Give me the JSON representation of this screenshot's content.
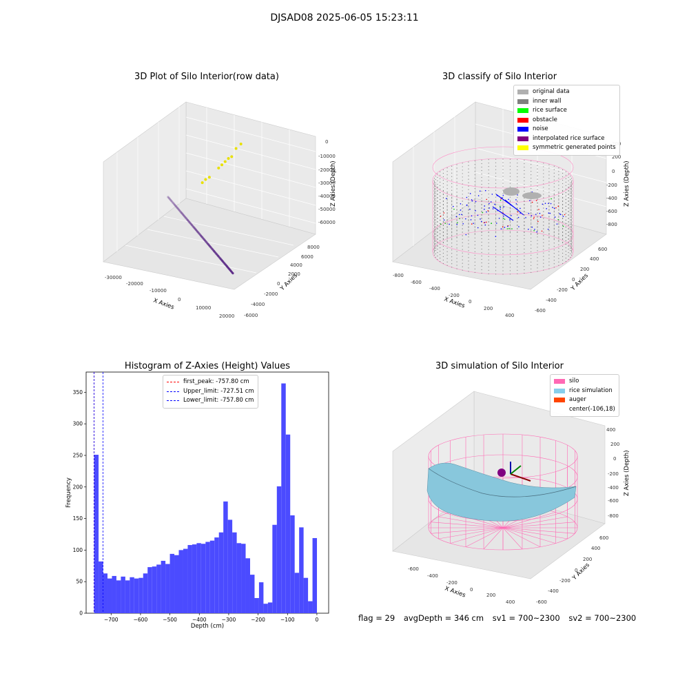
{
  "figure_title": "DJSAD08 2025-06-05 15:23:11",
  "footer": {
    "flag": "flag = 29",
    "avg_depth": "avgDepth = 346 cm",
    "sv1": "sv1 = 700~2300",
    "sv2": "sv2 = 700~2300"
  },
  "colors": {
    "point_cloud": "#5b2a86",
    "yellow_points": "#e8e000",
    "histogram_bar": "#4b4bff",
    "wall_mesh": "#ff80c0",
    "inner_wall": "#808080",
    "noise": "#0000ff",
    "rice_surface": "#87c8e0"
  },
  "chart_data": [
    {
      "type": "scatter",
      "title": "3D Plot of Silo Interior(row data)",
      "xlabel": "X Axies",
      "ylabel": "Y Axies",
      "zlabel": "Z Axies (Depth)",
      "xticks": [
        "-30000",
        "-20000",
        "-10000",
        "0",
        "10000",
        "20000"
      ],
      "yticks": [
        "-6000",
        "-4000",
        "-2000",
        "0",
        "2000",
        "4000",
        "6000",
        "8000"
      ],
      "zticks": [
        "0",
        "-10000",
        "-20000",
        "-30000",
        "-40000",
        "-50000",
        "-60000"
      ],
      "xlim": [
        -35000,
        25000
      ],
      "ylim": [
        -6000,
        9000
      ],
      "zlim": [
        -65000,
        5000
      ],
      "series": [
        {
          "x": [
            -19000,
            -15000,
            -11000,
            -7000,
            -3000,
            1000,
            5000,
            9000,
            13000,
            17000,
            21000
          ],
          "y": [
            -500,
            -900,
            -1300,
            -1700,
            -2100,
            -2500,
            -2900,
            -3300,
            -3700,
            -4100,
            -4500
          ],
          "z": [
            -30000,
            -33000,
            -36000,
            -39000,
            -42000,
            -45000,
            -48000,
            -51000,
            -54000,
            -57000,
            -60000
          ]
        },
        {
          "x": [
            -8000,
            -7000,
            -9000,
            -6000,
            -5000,
            -12000,
            -11000,
            -10000,
            -4000,
            -3000
          ],
          "y": [
            5000,
            5200,
            4800,
            5400,
            5600,
            3000,
            3200,
            3500,
            6000,
            6500
          ],
          "z": [
            -20000,
            -18000,
            -22000,
            -16000,
            -15000,
            -28000,
            -26000,
            -25000,
            -10000,
            -8000
          ]
        }
      ]
    },
    {
      "type": "scatter",
      "title": "3D classify of Silo Interior",
      "xlabel": "X Axies",
      "ylabel": "Y Axies",
      "zlabel": "Z Axies (Depth)",
      "xticks": [
        "-800",
        "-600",
        "-400",
        "-200",
        "0",
        "200",
        "400"
      ],
      "yticks": [
        "-600",
        "-400",
        "-200",
        "0",
        "200",
        "400",
        "600"
      ],
      "zticks": [
        "200",
        "0",
        "-200",
        "-400",
        "-600",
        "-800"
      ],
      "xlim": [
        -900,
        500
      ],
      "ylim": [
        -700,
        700
      ],
      "zlim": [
        -900,
        300
      ],
      "legend": [
        {
          "label": "original data",
          "color": "#b0b0b0"
        },
        {
          "label": "inner wall",
          "color": "#808080"
        },
        {
          "label": "rice surface",
          "color": "#00ff00"
        },
        {
          "label": "obstacle",
          "color": "#ff0000"
        },
        {
          "label": "noise",
          "color": "#0000ff"
        },
        {
          "label": "interpolated rice surface",
          "color": "#800080"
        },
        {
          "label": "symmetric generated points",
          "color": "#ffff00"
        }
      ]
    },
    {
      "type": "bar",
      "title": "Histogram of Z-Axies (Height) Values",
      "xlabel": "Depth (cm)",
      "ylabel": "Frequency",
      "xlim": [
        -785,
        40
      ],
      "ylim": [
        0,
        382
      ],
      "xticks": [
        "-700",
        "-600",
        "-500",
        "-400",
        "-300",
        "-200",
        "-100",
        "0"
      ],
      "yticks": [
        "0",
        "50",
        "100",
        "150",
        "200",
        "250",
        "300",
        "350"
      ],
      "bin_start": -757.8,
      "bin_width": 15.16,
      "values": [
        251,
        82,
        63,
        55,
        59,
        52,
        58,
        52,
        57,
        55,
        56,
        63,
        73,
        74,
        77,
        83,
        78,
        94,
        92,
        100,
        102,
        108,
        109,
        111,
        110,
        113,
        115,
        120,
        128,
        177,
        148,
        128,
        111,
        110,
        87,
        61,
        24,
        49,
        15,
        17,
        140,
        201,
        364,
        283,
        155,
        64,
        136,
        56,
        19,
        119
      ],
      "vlines": [
        {
          "label": "first_peak: -757.80 cm",
          "x": -757.8,
          "color": "#ff0000"
        },
        {
          "label": "Upper_limit: -727.51 cm",
          "x": -727.51,
          "color": "#0000ff"
        },
        {
          "label": "Lower_limit: -757.80 cm",
          "x": -757.8,
          "color": "#0000ff"
        }
      ]
    },
    {
      "type": "area",
      "title": "3D simulation of Silo Interior",
      "xlabel": "X Axies",
      "ylabel": "Y Axies",
      "zlabel": "Z Axies (Depth)",
      "xticks": [
        "-600",
        "-400",
        "-200",
        "0",
        "200",
        "400"
      ],
      "yticks": [
        "-600",
        "-400",
        "-200",
        "0",
        "200",
        "400",
        "600"
      ],
      "zticks": [
        "400",
        "200",
        "0",
        "-200",
        "-400",
        "-600",
        "-800"
      ],
      "xlim": [
        -700,
        500
      ],
      "ylim": [
        -700,
        700
      ],
      "zlim": [
        -900,
        500
      ],
      "legend": [
        {
          "label": "silo",
          "color": "#ff69b4"
        },
        {
          "label": "rice simulation",
          "color": "#87ceeb"
        },
        {
          "label": "auger",
          "color": "#ff4500"
        },
        {
          "label": "center(-106,18)",
          "color": ""
        }
      ]
    }
  ]
}
